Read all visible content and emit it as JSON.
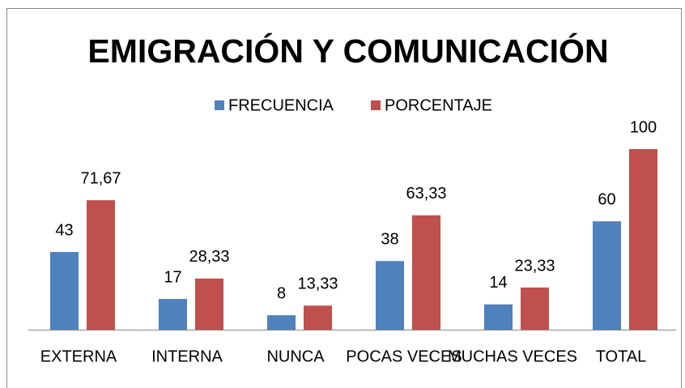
{
  "chart_data": {
    "type": "bar",
    "title": "EMIGRACIÓN Y COMUNICACIÓN",
    "categories": [
      "EXTERNA",
      "INTERNA",
      "NUNCA",
      "POCAS VECES",
      "MUCHAS VECES",
      "TOTAL"
    ],
    "series": [
      {
        "name": "FRECUENCIA",
        "color": "#4f81bd",
        "values": [
          43,
          17,
          8,
          38,
          14,
          60
        ]
      },
      {
        "name": "PORCENTAJE",
        "color": "#c0504d",
        "values": [
          71.67,
          28.33,
          13.33,
          63.33,
          23.33,
          100
        ],
        "value_labels": [
          "71,67",
          "28,33",
          "13,33",
          "63,33",
          "23,33",
          "100"
        ]
      }
    ],
    "legend": "top"
  }
}
